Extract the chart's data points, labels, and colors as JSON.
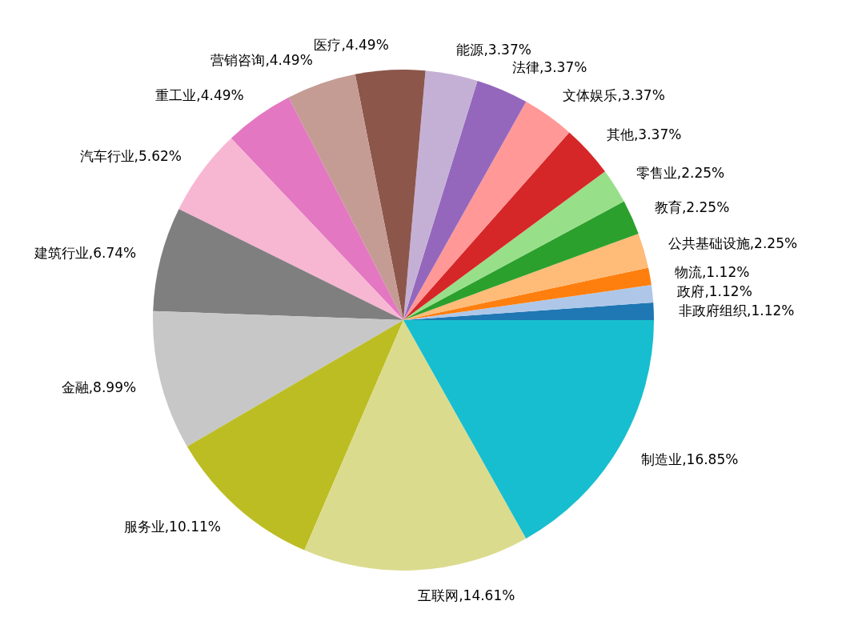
{
  "chart_data": {
    "type": "pie",
    "categories": [
      "非政府组织",
      "政府",
      "物流",
      "公共基础设施",
      "教育",
      "零售业",
      "其他",
      "文体娱乐",
      "法律",
      "能源",
      "医疗",
      "营销咨询",
      "重工业",
      "汽车行业",
      "建筑行业",
      "金融",
      "服务业",
      "互联网",
      "制造业"
    ],
    "values": [
      1.12,
      1.12,
      1.12,
      2.25,
      2.25,
      2.25,
      3.37,
      3.37,
      3.37,
      3.37,
      4.49,
      4.49,
      4.49,
      5.62,
      6.74,
      8.99,
      10.11,
      14.61,
      16.85
    ],
    "value_labels": [
      ",1.12%",
      ",1.12%",
      ",1.12%",
      ",2.25%",
      ",2.25%",
      ",2.25%",
      ",3.37%",
      ",3.37%",
      ",3.37%",
      ",3.37%",
      ",4.49%",
      ",4.49%",
      ",4.49%",
      ",5.62%",
      ",6.74%",
      ",8.99%",
      ",10.11%",
      ",14.61%",
      ",16.85%"
    ],
    "colors": [
      "#1f77b4",
      "#aec7e8",
      "#ff7f0e",
      "#ffbb78",
      "#2ca02c",
      "#98df8a",
      "#d62728",
      "#ff9896",
      "#9467bd",
      "#c5b0d5",
      "#8c564b",
      "#c49c94",
      "#e377c2",
      "#f7b6d2",
      "#7f7f7f",
      "#c7c7c7",
      "#bcbd22",
      "#dbdb8d",
      "#17becf"
    ]
  }
}
